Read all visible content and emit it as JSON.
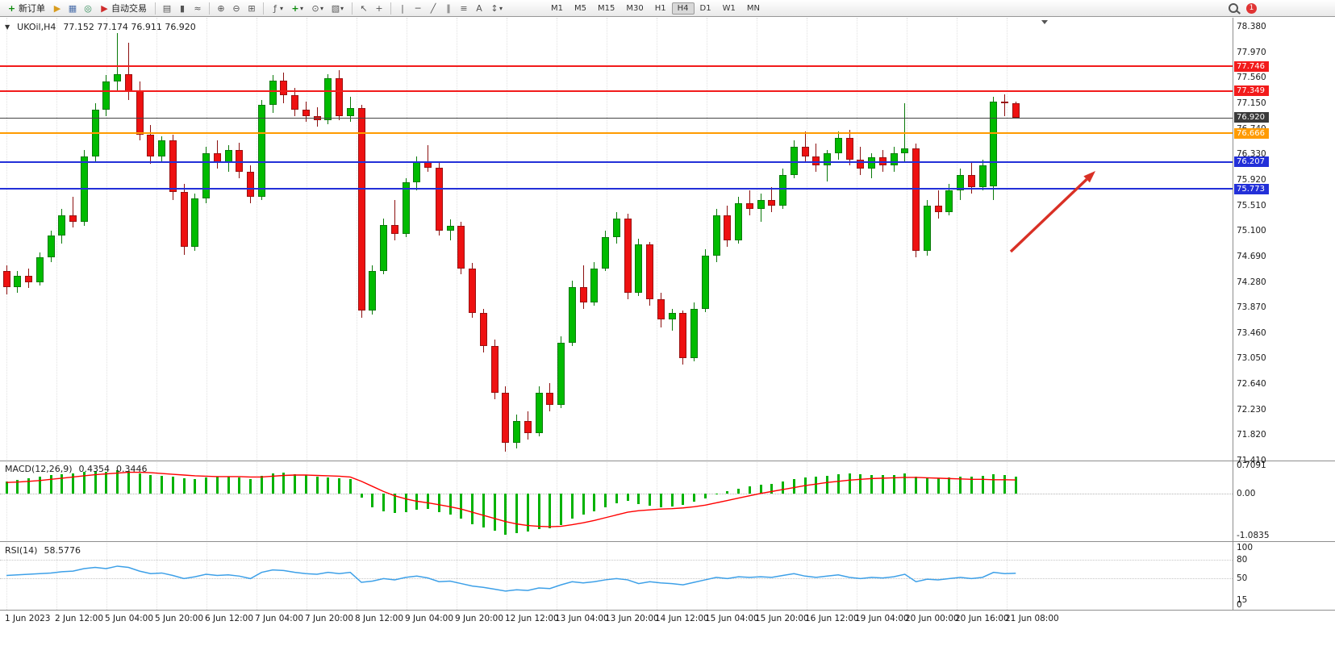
{
  "toolbar": {
    "new_order_label": "新订单",
    "auto_trading_label": "自动交易",
    "timeframes": [
      "M1",
      "M5",
      "M15",
      "M30",
      "H1",
      "H4",
      "D1",
      "W1",
      "MN"
    ],
    "active_timeframe": "H4",
    "notification_count": "1",
    "icons": {
      "new_order": "+",
      "trade_levels": "▶",
      "chart_window": "▦",
      "sound": "◎",
      "autotrade": "▶",
      "bars": "▤",
      "candles": "▮",
      "line": "≈",
      "zoom_in": "⊕",
      "zoom_out": "⊖",
      "tile": "⊞",
      "indicators": "ƒ",
      "add": "+",
      "clock": "⊙",
      "template": "▧",
      "cursor": "↖",
      "crosshair": "+",
      "vline": "|",
      "hline": "─",
      "tline": "╱",
      "channel": "∥",
      "fibo": "≡",
      "text": "A",
      "shapes": "↕",
      "caret": "▾",
      "collapse": "▼"
    }
  },
  "chart": {
    "header": {
      "symbol": "UKOil,H4",
      "ohlc": "77.152 77.174 76.911 76.920"
    }
  },
  "price_axis_labels": [
    "78.380",
    "77.970",
    "77.560",
    "77.150",
    "76.740",
    "76.330",
    "75.920",
    "75.510",
    "75.100",
    "74.690",
    "74.280",
    "73.870",
    "73.460",
    "73.050",
    "72.640",
    "72.230",
    "71.820",
    "71.410"
  ],
  "time_axis": {
    "labels": [
      "1 Jun 2023",
      "2 Jun 12:00",
      "5 Jun 04:00",
      "5 Jun 20:00",
      "6 Jun 12:00",
      "7 Jun 04:00",
      "7 Jun 20:00",
      "8 Jun 12:00",
      "9 Jun 04:00",
      "9 Jun 20:00",
      "12 Jun 12:00",
      "13 Jun 04:00",
      "13 Jun 20:00",
      "14 Jun 12:00",
      "15 Jun 04:00",
      "15 Jun 20:00",
      "16 Jun 12:00",
      "19 Jun 04:00",
      "20 Jun 00:00",
      "20 Jun 16:00",
      "21 Jun 08:00"
    ]
  },
  "chart_data": {
    "type": "candlestick",
    "symbol": "UKOil",
    "timeframe": "H4",
    "title": "UKOil,H4",
    "ohlc_current": {
      "open": 77.152,
      "high": 77.174,
      "low": 76.911,
      "close": 76.92
    },
    "ylim": [
      71.41,
      78.38
    ],
    "candles": [
      [
        74.45,
        74.55,
        74.08,
        74.2
      ],
      [
        74.2,
        74.45,
        74.1,
        74.38
      ],
      [
        74.38,
        74.5,
        74.18,
        74.28
      ],
      [
        74.28,
        74.75,
        74.22,
        74.68
      ],
      [
        74.68,
        75.1,
        74.6,
        75.02
      ],
      [
        75.02,
        75.45,
        74.9,
        75.35
      ],
      [
        75.35,
        75.65,
        75.15,
        75.25
      ],
      [
        75.25,
        76.4,
        75.18,
        76.3
      ],
      [
        76.3,
        77.15,
        76.2,
        77.05
      ],
      [
        77.05,
        77.6,
        76.95,
        77.5
      ],
      [
        77.5,
        78.28,
        77.35,
        77.62
      ],
      [
        77.62,
        78.12,
        77.2,
        77.35
      ],
      [
        77.35,
        77.5,
        76.55,
        76.65
      ],
      [
        76.65,
        76.8,
        76.18,
        76.3
      ],
      [
        76.3,
        76.62,
        76.22,
        76.55
      ],
      [
        76.55,
        76.65,
        75.6,
        75.72
      ],
      [
        75.72,
        75.85,
        74.72,
        74.85
      ],
      [
        74.85,
        75.7,
        74.78,
        75.62
      ],
      [
        75.62,
        76.45,
        75.55,
        76.35
      ],
      [
        76.35,
        76.55,
        76.1,
        76.2
      ],
      [
        76.2,
        76.48,
        76.05,
        76.4
      ],
      [
        76.4,
        76.52,
        75.95,
        76.05
      ],
      [
        76.05,
        76.15,
        75.55,
        75.65
      ],
      [
        75.65,
        77.2,
        75.6,
        77.12
      ],
      [
        77.12,
        77.6,
        77.0,
        77.52
      ],
      [
        77.52,
        77.65,
        77.15,
        77.28
      ],
      [
        77.28,
        77.4,
        76.95,
        77.05
      ],
      [
        77.05,
        77.18,
        76.85,
        76.95
      ],
      [
        76.95,
        77.08,
        76.78,
        76.88
      ],
      [
        76.88,
        77.62,
        76.82,
        77.55
      ],
      [
        77.55,
        77.68,
        76.88,
        76.95
      ],
      [
        76.95,
        77.25,
        76.85,
        77.07
      ],
      [
        77.07,
        77.12,
        73.7,
        73.82
      ],
      [
        73.82,
        74.55,
        73.75,
        74.45
      ],
      [
        74.45,
        75.3,
        74.4,
        75.2
      ],
      [
        75.2,
        75.6,
        74.95,
        75.05
      ],
      [
        75.05,
        75.95,
        75.0,
        75.88
      ],
      [
        75.88,
        76.3,
        75.75,
        76.22
      ],
      [
        76.22,
        76.48,
        76.05,
        76.12
      ],
      [
        76.12,
        76.2,
        75.02,
        75.1
      ],
      [
        75.1,
        75.28,
        74.95,
        75.18
      ],
      [
        75.18,
        75.25,
        74.4,
        74.5
      ],
      [
        74.5,
        74.58,
        73.7,
        73.78
      ],
      [
        73.78,
        73.85,
        73.15,
        73.25
      ],
      [
        73.25,
        73.35,
        72.4,
        72.5
      ],
      [
        72.5,
        72.6,
        71.55,
        71.7
      ],
      [
        71.7,
        72.15,
        71.6,
        72.05
      ],
      [
        72.05,
        72.2,
        71.75,
        71.85
      ],
      [
        71.85,
        72.6,
        71.8,
        72.5
      ],
      [
        72.5,
        72.65,
        72.2,
        72.3
      ],
      [
        72.3,
        73.4,
        72.25,
        73.3
      ],
      [
        73.3,
        74.3,
        73.25,
        74.2
      ],
      [
        74.2,
        74.55,
        73.85,
        73.95
      ],
      [
        73.95,
        74.6,
        73.9,
        74.5
      ],
      [
        74.5,
        75.1,
        74.45,
        75.0
      ],
      [
        75.0,
        75.4,
        74.9,
        75.3
      ],
      [
        75.3,
        75.38,
        74.0,
        74.1
      ],
      [
        74.1,
        74.98,
        74.05,
        74.88
      ],
      [
        74.88,
        74.92,
        73.9,
        74.0
      ],
      [
        74.0,
        74.1,
        73.55,
        73.68
      ],
      [
        73.68,
        73.85,
        73.5,
        73.78
      ],
      [
        73.78,
        73.82,
        72.95,
        73.05
      ],
      [
        73.05,
        73.95,
        73.0,
        73.85
      ],
      [
        73.85,
        74.8,
        73.8,
        74.7
      ],
      [
        74.7,
        75.45,
        74.6,
        75.35
      ],
      [
        75.35,
        75.5,
        74.85,
        74.95
      ],
      [
        74.95,
        75.65,
        74.9,
        75.55
      ],
      [
        75.55,
        75.75,
        75.35,
        75.45
      ],
      [
        75.45,
        75.7,
        75.25,
        75.6
      ],
      [
        75.6,
        75.8,
        75.4,
        75.5
      ],
      [
        75.5,
        76.1,
        75.45,
        76.0
      ],
      [
        76.0,
        76.55,
        75.95,
        76.45
      ],
      [
        76.45,
        76.7,
        76.2,
        76.3
      ],
      [
        76.3,
        76.5,
        76.05,
        76.15
      ],
      [
        76.15,
        76.4,
        75.9,
        76.35
      ],
      [
        76.35,
        76.7,
        76.25,
        76.6
      ],
      [
        76.6,
        76.72,
        76.15,
        76.25
      ],
      [
        76.25,
        76.45,
        76.0,
        76.1
      ],
      [
        76.1,
        76.35,
        75.95,
        76.28
      ],
      [
        76.28,
        76.4,
        76.05,
        76.15
      ],
      [
        76.15,
        76.45,
        76.05,
        76.35
      ],
      [
        76.35,
        77.15,
        76.2,
        76.42
      ],
      [
        76.42,
        76.5,
        74.68,
        74.78
      ],
      [
        74.78,
        75.6,
        74.7,
        75.5
      ],
      [
        75.5,
        75.75,
        75.3,
        75.4
      ],
      [
        75.4,
        75.85,
        75.35,
        75.75
      ],
      [
        75.75,
        76.1,
        75.6,
        76.0
      ],
      [
        76.0,
        76.2,
        75.7,
        75.8
      ],
      [
        75.8,
        76.25,
        75.75,
        76.15
      ],
      [
        75.82,
        77.25,
        75.6,
        77.18
      ],
      [
        77.18,
        77.3,
        76.95,
        77.15
      ],
      [
        77.152,
        77.174,
        76.911,
        76.92
      ]
    ],
    "candle_colors": {
      "up": "#00bb00",
      "down": "#ee1111"
    },
    "current_price": {
      "value": 76.92,
      "label": "76.920",
      "color": "#3a3a3a"
    },
    "hlines": [
      {
        "price": 77.746,
        "label": "77.746",
        "color": "#f21b1b"
      },
      {
        "price": 77.349,
        "label": "77.349",
        "color": "#f21b1b"
      },
      {
        "price": 76.666,
        "label": "76.666",
        "color": "#ff9b00"
      },
      {
        "price": 76.207,
        "label": "76.207",
        "color": "#2330d8"
      },
      {
        "price": 75.773,
        "label": "75.773",
        "color": "#2330d8"
      }
    ],
    "indicators": {
      "macd": {
        "label": "MACD(12,26,9)",
        "value_main": "0.4354",
        "value_signal": "0.3446",
        "axis": [
          "0.7091",
          "0.00",
          "-1.0835"
        ],
        "histogram_color": "#00b200",
        "signal_color": "#ff0000",
        "histogram": [
          0.3,
          0.34,
          0.38,
          0.42,
          0.46,
          0.5,
          0.52,
          0.55,
          0.58,
          0.56,
          0.6,
          0.58,
          0.52,
          0.48,
          0.45,
          0.42,
          0.38,
          0.36,
          0.4,
          0.42,
          0.43,
          0.4,
          0.36,
          0.45,
          0.52,
          0.54,
          0.5,
          0.46,
          0.42,
          0.4,
          0.38,
          0.36,
          -0.1,
          -0.35,
          -0.45,
          -0.5,
          -0.48,
          -0.42,
          -0.4,
          -0.48,
          -0.55,
          -0.65,
          -0.78,
          -0.88,
          -0.95,
          -1.05,
          -1.02,
          -0.98,
          -0.92,
          -0.9,
          -0.8,
          -0.65,
          -0.55,
          -0.45,
          -0.35,
          -0.25,
          -0.2,
          -0.28,
          -0.32,
          -0.35,
          -0.33,
          -0.3,
          -0.22,
          -0.12,
          -0.02,
          0.05,
          0.12,
          0.18,
          0.22,
          0.25,
          0.3,
          0.36,
          0.4,
          0.42,
          0.45,
          0.5,
          0.52,
          0.5,
          0.48,
          0.47,
          0.48,
          0.52,
          0.42,
          0.4,
          0.38,
          0.4,
          0.42,
          0.43,
          0.44,
          0.5,
          0.46,
          0.4354
        ],
        "signal": [
          0.28,
          0.29,
          0.31,
          0.33,
          0.36,
          0.39,
          0.42,
          0.45,
          0.48,
          0.5,
          0.52,
          0.54,
          0.54,
          0.53,
          0.51,
          0.49,
          0.47,
          0.45,
          0.44,
          0.43,
          0.43,
          0.43,
          0.42,
          0.42,
          0.44,
          0.46,
          0.47,
          0.47,
          0.46,
          0.45,
          0.44,
          0.42,
          0.31,
          0.18,
          0.05,
          -0.06,
          -0.14,
          -0.2,
          -0.24,
          -0.29,
          -0.34,
          -0.4,
          -0.48,
          -0.56,
          -0.64,
          -0.72,
          -0.78,
          -0.82,
          -0.84,
          -0.85,
          -0.84,
          -0.8,
          -0.75,
          -0.69,
          -0.62,
          -0.55,
          -0.48,
          -0.44,
          -0.42,
          -0.4,
          -0.39,
          -0.37,
          -0.34,
          -0.3,
          -0.24,
          -0.18,
          -0.12,
          -0.06,
          0.0,
          0.05,
          0.1,
          0.15,
          0.2,
          0.24,
          0.28,
          0.31,
          0.34,
          0.36,
          0.38,
          0.39,
          0.4,
          0.41,
          0.41,
          0.4,
          0.39,
          0.38,
          0.37,
          0.36,
          0.36,
          0.35,
          0.35,
          0.3446
        ]
      },
      "rsi": {
        "label": "RSI(14)",
        "value": "58.5776",
        "axis": [
          "100",
          "80",
          "50",
          "15",
          "0"
        ],
        "line_color": "#3da0e8",
        "levels": [
          80,
          50
        ],
        "values": [
          55,
          56,
          57,
          58,
          59,
          61,
          62,
          66,
          68,
          66,
          70,
          68,
          62,
          58,
          59,
          55,
          50,
          53,
          57,
          55,
          56,
          54,
          50,
          60,
          64,
          63,
          60,
          58,
          57,
          60,
          58,
          60,
          44,
          46,
          50,
          48,
          52,
          54,
          51,
          45,
          46,
          42,
          38,
          36,
          33,
          30,
          32,
          31,
          35,
          34,
          40,
          45,
          43,
          45,
          48,
          50,
          48,
          42,
          45,
          43,
          42,
          40,
          44,
          48,
          52,
          50,
          53,
          52,
          53,
          52,
          55,
          58,
          54,
          52,
          54,
          56,
          52,
          50,
          52,
          51,
          53,
          57,
          45,
          49,
          48,
          50,
          52,
          50,
          52,
          60,
          58,
          58.5776
        ]
      }
    },
    "annotations": {
      "arrow": {
        "from": [
          1253,
          312
        ],
        "to": [
          1358,
          212
        ],
        "color": "#d93025"
      }
    }
  }
}
